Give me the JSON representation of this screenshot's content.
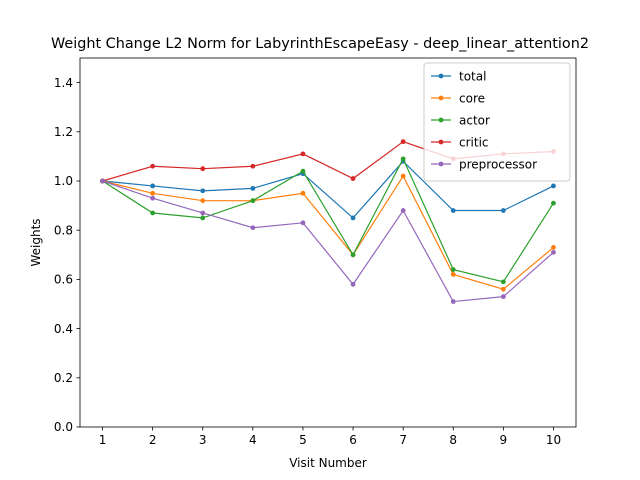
{
  "chart_data": {
    "type": "line",
    "title": "Weight Change L2 Norm for LabyrinthEscapeEasy - deep_linear_attention2",
    "xlabel": "Visit Number",
    "ylabel": "Weights",
    "x": [
      1,
      2,
      3,
      4,
      5,
      6,
      7,
      8,
      9,
      10
    ],
    "xlim": [
      0.55,
      10.45
    ],
    "ylim": [
      0.0,
      1.5
    ],
    "yticks": [
      "0.0",
      "0.2",
      "0.4",
      "0.6",
      "0.8",
      "1.0",
      "1.2",
      "1.4"
    ],
    "xticks": [
      "1",
      "2",
      "3",
      "4",
      "5",
      "6",
      "7",
      "8",
      "9",
      "10"
    ],
    "grid": false,
    "legend_position": "top-right",
    "series": [
      {
        "name": "total",
        "color": "#1f77b4",
        "values": [
          1.0,
          0.98,
          0.96,
          0.97,
          1.03,
          0.85,
          1.08,
          0.88,
          0.88,
          0.98
        ]
      },
      {
        "name": "core",
        "color": "#ff7f0e",
        "values": [
          1.0,
          0.95,
          0.92,
          0.92,
          0.95,
          0.7,
          1.02,
          0.62,
          0.56,
          0.73
        ]
      },
      {
        "name": "actor",
        "color": "#2ca02c",
        "values": [
          1.0,
          0.87,
          0.85,
          0.92,
          1.04,
          0.7,
          1.09,
          0.64,
          0.59,
          0.91
        ]
      },
      {
        "name": "critic",
        "color": "#d62728",
        "values": [
          1.0,
          1.06,
          1.05,
          1.06,
          1.11,
          1.01,
          1.16,
          1.09,
          1.11,
          1.12
        ]
      },
      {
        "name": "preprocessor",
        "color": "#9467bd",
        "values": [
          1.0,
          0.93,
          0.87,
          0.81,
          0.83,
          0.58,
          0.88,
          0.51,
          0.53,
          0.71
        ]
      }
    ]
  }
}
